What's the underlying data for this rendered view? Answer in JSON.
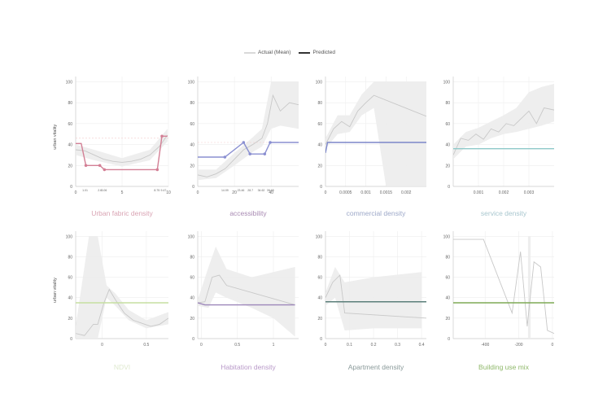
{
  "legend": {
    "actual_label": "Actual (Mean)",
    "predicted_label": "Predicted",
    "actual_color": "#d9d9d9",
    "predicted_color": "#333333"
  },
  "chart_data": [
    {
      "type": "line",
      "title": "Urban fabric density",
      "title_color": "#d9a3b3",
      "ylabel": "urban vitality",
      "xlim": [
        0,
        10
      ],
      "ylim": [
        0,
        105
      ],
      "xticks": [
        0,
        5,
        10
      ],
      "yticks": [
        0,
        20,
        40,
        60,
        80,
        100
      ],
      "predicted_color": "#d37f95",
      "predicted": [
        [
          0,
          41
        ],
        [
          0.6,
          41
        ],
        [
          1.1,
          20
        ],
        [
          2.6,
          20
        ],
        [
          3.1,
          16
        ],
        [
          8.8,
          16
        ],
        [
          9.3,
          48
        ],
        [
          9.9,
          48
        ]
      ],
      "predicted_markers": [
        [
          1.1,
          20
        ],
        [
          2.6,
          20
        ],
        [
          3.1,
          16
        ],
        [
          8.8,
          16
        ],
        [
          9.3,
          48
        ]
      ],
      "marker_labels": [
        [
          1.01,
          "1.01"
        ],
        [
          2.6,
          "2.6"
        ],
        [
          3.06,
          "3.06"
        ],
        [
          8.75,
          "8.75"
        ],
        [
          9.47,
          "9.47"
        ]
      ],
      "actual": [
        [
          0,
          35
        ],
        [
          1,
          34
        ],
        [
          2,
          30
        ],
        [
          3,
          26
        ],
        [
          4,
          24
        ],
        [
          5,
          23
        ],
        [
          6,
          24
        ],
        [
          7,
          26
        ],
        [
          8,
          30
        ],
        [
          9,
          38
        ],
        [
          9.9,
          49
        ]
      ],
      "band": [
        [
          0,
          30,
          40
        ],
        [
          2,
          25,
          35
        ],
        [
          5,
          19,
          27
        ],
        [
          8,
          25,
          35
        ],
        [
          9.9,
          43,
          55
        ]
      ],
      "ref_line": 46,
      "x_domain_note": ""
    },
    {
      "type": "line",
      "title": "accessibility",
      "title_color": "#a98bb3",
      "ylabel": "",
      "xlim": [
        0,
        55
      ],
      "ylim": [
        0,
        105
      ],
      "xticks": [
        0,
        20,
        40
      ],
      "yticks": [
        0,
        20,
        40,
        60,
        80,
        100
      ],
      "predicted_color": "#8a8fd1",
      "predicted": [
        [
          0,
          28
        ],
        [
          14.8,
          28
        ],
        [
          25,
          42
        ],
        [
          28.5,
          31
        ],
        [
          36.5,
          31
        ],
        [
          39.5,
          42
        ],
        [
          55,
          42
        ]
      ],
      "predicted_markers": [
        [
          14.8,
          28
        ],
        [
          25,
          42
        ],
        [
          28.5,
          31
        ],
        [
          36.5,
          31
        ],
        [
          39.5,
          42
        ]
      ],
      "marker_labels": [
        [
          14.8,
          "14.09"
        ],
        [
          23.5,
          "23.46"
        ],
        [
          28.7,
          "28.7"
        ],
        [
          34.6,
          "34.62"
        ],
        [
          39.6,
          "39.65"
        ]
      ],
      "actual": [
        [
          0,
          11
        ],
        [
          5,
          9
        ],
        [
          10,
          12
        ],
        [
          15,
          17
        ],
        [
          20,
          26
        ],
        [
          25,
          35
        ],
        [
          30,
          40
        ],
        [
          35,
          46
        ],
        [
          38,
          60
        ],
        [
          41,
          87
        ],
        [
          45,
          72
        ],
        [
          50,
          80
        ],
        [
          55,
          78
        ]
      ],
      "band": [
        [
          0,
          6,
          16
        ],
        [
          10,
          8,
          16
        ],
        [
          20,
          20,
          32
        ],
        [
          30,
          33,
          47
        ],
        [
          35,
          38,
          55
        ],
        [
          40,
          55,
          100
        ],
        [
          45,
          58,
          100
        ],
        [
          55,
          55,
          100
        ]
      ],
      "ref_line": 42,
      "x_domain_note": ""
    },
    {
      "type": "line",
      "title": "commercial density",
      "title_color": "#9ea9c9",
      "ylabel": "",
      "xlim": [
        0,
        0.0025
      ],
      "ylim": [
        0,
        105
      ],
      "xticks": [
        0,
        0.0005,
        0.001,
        0.0015,
        0.002
      ],
      "yticks": [
        0,
        20,
        40,
        60,
        80,
        100
      ],
      "predicted_color": "#7b86c9",
      "predicted": [
        [
          0,
          32
        ],
        [
          5e-05,
          42
        ],
        [
          0.0025,
          42
        ]
      ],
      "predicted_markers": [],
      "marker_labels": [],
      "actual": [
        [
          0,
          40
        ],
        [
          0.0002,
          55
        ],
        [
          0.0004,
          62
        ],
        [
          0.0006,
          57
        ],
        [
          0.0008,
          72
        ],
        [
          0.001,
          80
        ],
        [
          0.0012,
          87
        ],
        [
          0.0025,
          67
        ]
      ],
      "band": [
        [
          0,
          36,
          46
        ],
        [
          0.0003,
          50,
          68
        ],
        [
          0.0006,
          52,
          68
        ],
        [
          0.0009,
          68,
          88
        ],
        [
          0.0012,
          75,
          100
        ],
        [
          0.0015,
          0,
          100
        ],
        [
          0.002,
          0,
          100
        ],
        [
          0.0025,
          0,
          100
        ]
      ],
      "ref_line": null,
      "x_domain_note": ""
    },
    {
      "type": "line",
      "title": "service density",
      "title_color": "#a9c7cf",
      "ylabel": "",
      "xlim": [
        0,
        0.004
      ],
      "ylim": [
        0,
        105
      ],
      "xticks": [
        0.001,
        0.002,
        0.003
      ],
      "yticks": [
        0,
        20,
        40,
        60,
        80,
        100
      ],
      "predicted_color": "#8ec9c9",
      "predicted": [
        [
          0,
          36
        ],
        [
          0.004,
          36
        ]
      ],
      "predicted_markers": [],
      "marker_labels": [],
      "actual": [
        [
          0,
          30
        ],
        [
          0.0003,
          46
        ],
        [
          0.0006,
          44
        ],
        [
          0.0009,
          50
        ],
        [
          0.0012,
          45
        ],
        [
          0.0015,
          55
        ],
        [
          0.0018,
          52
        ],
        [
          0.0021,
          60
        ],
        [
          0.0024,
          58
        ],
        [
          0.0027,
          65
        ],
        [
          0.003,
          72
        ],
        [
          0.0033,
          60
        ],
        [
          0.0036,
          75
        ],
        [
          0.004,
          73
        ]
      ],
      "band": [
        [
          0,
          26,
          40
        ],
        [
          0.0005,
          38,
          52
        ],
        [
          0.001,
          40,
          56
        ],
        [
          0.0015,
          46,
          62
        ],
        [
          0.002,
          50,
          68
        ],
        [
          0.0025,
          52,
          75
        ],
        [
          0.003,
          55,
          90
        ],
        [
          0.0035,
          58,
          95
        ],
        [
          0.004,
          62,
          98
        ]
      ],
      "ref_line": null,
      "x_domain_note": ""
    },
    {
      "type": "line",
      "title": "NDVI",
      "title_color": "#dfe9cf",
      "ylabel": "urban vitality",
      "xlim": [
        -0.3,
        0.75
      ],
      "ylim": [
        0,
        105
      ],
      "xticks": [
        0,
        0.5
      ],
      "yticks": [
        0,
        20,
        40,
        60,
        80,
        100
      ],
      "predicted_color": "#c5dfa0",
      "predicted": [
        [
          -0.3,
          35
        ],
        [
          0.75,
          35
        ]
      ],
      "predicted_markers": [],
      "marker_labels": [],
      "actual": [
        [
          -0.3,
          5
        ],
        [
          -0.2,
          3
        ],
        [
          -0.1,
          14
        ],
        [
          -0.05,
          14
        ],
        [
          0.02,
          35
        ],
        [
          0.08,
          48
        ],
        [
          0.15,
          38
        ],
        [
          0.25,
          25
        ],
        [
          0.35,
          18
        ],
        [
          0.45,
          15
        ],
        [
          0.55,
          12
        ],
        [
          0.65,
          14
        ],
        [
          0.75,
          20
        ]
      ],
      "band": [
        [
          -0.3,
          0,
          12
        ],
        [
          -0.15,
          0,
          100
        ],
        [
          -0.05,
          0,
          100
        ],
        [
          0.05,
          40,
          52
        ],
        [
          0.15,
          32,
          44
        ],
        [
          0.3,
          18,
          28
        ],
        [
          0.5,
          10,
          18
        ],
        [
          0.75,
          14,
          26
        ]
      ],
      "ref_line": null,
      "x_domain_note": ""
    },
    {
      "type": "line",
      "title": "Habitation density",
      "title_color": "#b99ac9",
      "ylabel": "",
      "xlim": [
        -0.05,
        1.35
      ],
      "ylim": [
        0,
        105
      ],
      "xticks": [
        0,
        0.5,
        1
      ],
      "yticks": [
        0,
        20,
        40,
        60,
        80,
        100
      ],
      "predicted_color": "#9c86b9",
      "predicted": [
        [
          -0.05,
          35
        ],
        [
          0.05,
          33
        ],
        [
          1.3,
          33
        ]
      ],
      "predicted_markers": [],
      "marker_labels": [],
      "actual": [
        [
          -0.05,
          35
        ],
        [
          0.05,
          36
        ],
        [
          0.15,
          60
        ],
        [
          0.25,
          62
        ],
        [
          0.35,
          52
        ],
        [
          1.3,
          33
        ]
      ],
      "band": [
        [
          -0.05,
          32,
          38
        ],
        [
          0.1,
          30,
          70
        ],
        [
          0.2,
          45,
          90
        ],
        [
          0.35,
          40,
          68
        ],
        [
          0.7,
          30,
          60
        ],
        [
          1.0,
          20,
          65
        ],
        [
          1.3,
          2,
          70
        ]
      ],
      "ref_line": null,
      "x_domain_note": ""
    },
    {
      "type": "line",
      "title": "Apartment density",
      "title_color": "#8a9a9a",
      "ylabel": "",
      "xlim": [
        0,
        0.42
      ],
      "ylim": [
        0,
        105
      ],
      "xticks": [
        0,
        0.1,
        0.2,
        0.3,
        0.4
      ],
      "yticks": [
        0,
        20,
        40,
        60,
        80,
        100
      ],
      "predicted_color": "#5b7f7a",
      "predicted": [
        [
          0,
          36
        ],
        [
          0.42,
          36
        ]
      ],
      "predicted_markers": [],
      "marker_labels": [],
      "actual": [
        [
          0,
          40
        ],
        [
          0.03,
          55
        ],
        [
          0.06,
          62
        ],
        [
          0.08,
          25
        ],
        [
          0.42,
          20
        ]
      ],
      "band": [
        [
          0,
          32,
          45
        ],
        [
          0.04,
          40,
          70
        ],
        [
          0.08,
          8,
          55
        ],
        [
          0.2,
          10,
          60
        ],
        [
          0.4,
          10,
          65
        ]
      ],
      "ref_line": null,
      "x_domain_note": ""
    },
    {
      "type": "line",
      "title": "Building use mix",
      "title_color": "#8fb86a",
      "ylabel": "",
      "xlim": [
        -590,
        10
      ],
      "ylim": [
        0,
        105
      ],
      "xticks": [
        -400,
        -200,
        0
      ],
      "yticks": [
        0,
        20,
        40,
        60,
        80,
        100
      ],
      "predicted_color": "#7eaa55",
      "predicted": [
        [
          -590,
          35
        ],
        [
          10,
          35
        ]
      ],
      "predicted_markers": [],
      "marker_labels": [],
      "actual": [
        [
          -590,
          97
        ],
        [
          -410,
          97
        ],
        [
          -240,
          25
        ],
        [
          -190,
          85
        ],
        [
          -150,
          12
        ],
        [
          -110,
          75
        ],
        [
          -70,
          70
        ],
        [
          -30,
          8
        ],
        [
          10,
          5
        ]
      ],
      "band": [
        [
          -145,
          0,
          100
        ],
        [
          -130,
          0,
          100
        ]
      ],
      "ref_line": null,
      "x_domain_note": ""
    }
  ]
}
